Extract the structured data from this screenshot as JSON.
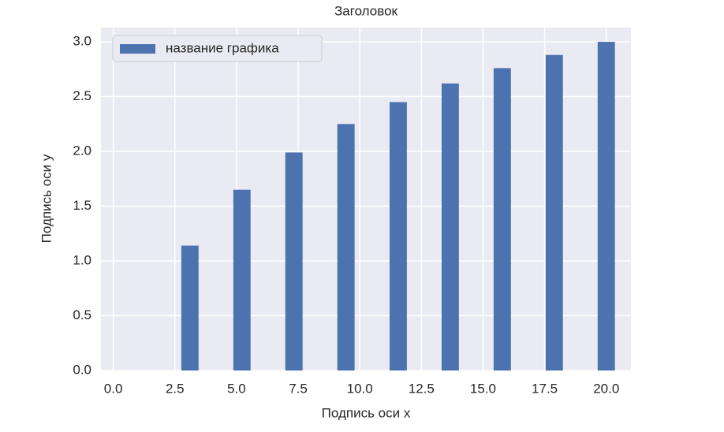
{
  "chart_data": {
    "type": "bar",
    "title": "Заголовок",
    "xlabel": "Подпись оси x",
    "ylabel": "Подпись оси y",
    "series": [
      {
        "name": "название графика",
        "color": "#4c72b0",
        "x": [
          1,
          3.11,
          5.22,
          7.33,
          9.44,
          11.56,
          13.67,
          15.78,
          17.89,
          20
        ],
        "values": [
          0,
          1.14,
          1.65,
          1.99,
          2.25,
          2.45,
          2.62,
          2.76,
          2.88,
          3.0
        ]
      }
    ],
    "xlim": [
      -0.5,
      21.0
    ],
    "ylim": [
      0,
      3.13
    ],
    "xticks": [
      {
        "value": 0,
        "label": "0.0"
      },
      {
        "value": 2.5,
        "label": "2.5"
      },
      {
        "value": 5,
        "label": "5.0"
      },
      {
        "value": 7.5,
        "label": "7.5"
      },
      {
        "value": 10,
        "label": "10.0"
      },
      {
        "value": 12.5,
        "label": "12.5"
      },
      {
        "value": 15,
        "label": "15.0"
      },
      {
        "value": 17.5,
        "label": "17.5"
      },
      {
        "value": 20,
        "label": "20.0"
      }
    ],
    "yticks": [
      {
        "value": 0,
        "label": "0.0"
      },
      {
        "value": 0.5,
        "label": "0.5"
      },
      {
        "value": 1,
        "label": "1.0"
      },
      {
        "value": 1.5,
        "label": "1.5"
      },
      {
        "value": 2,
        "label": "2.0"
      },
      {
        "value": 2.5,
        "label": "2.5"
      },
      {
        "value": 3,
        "label": "3.0"
      }
    ],
    "grid": true,
    "legend": "upper left",
    "background": "#eaeaf2"
  }
}
